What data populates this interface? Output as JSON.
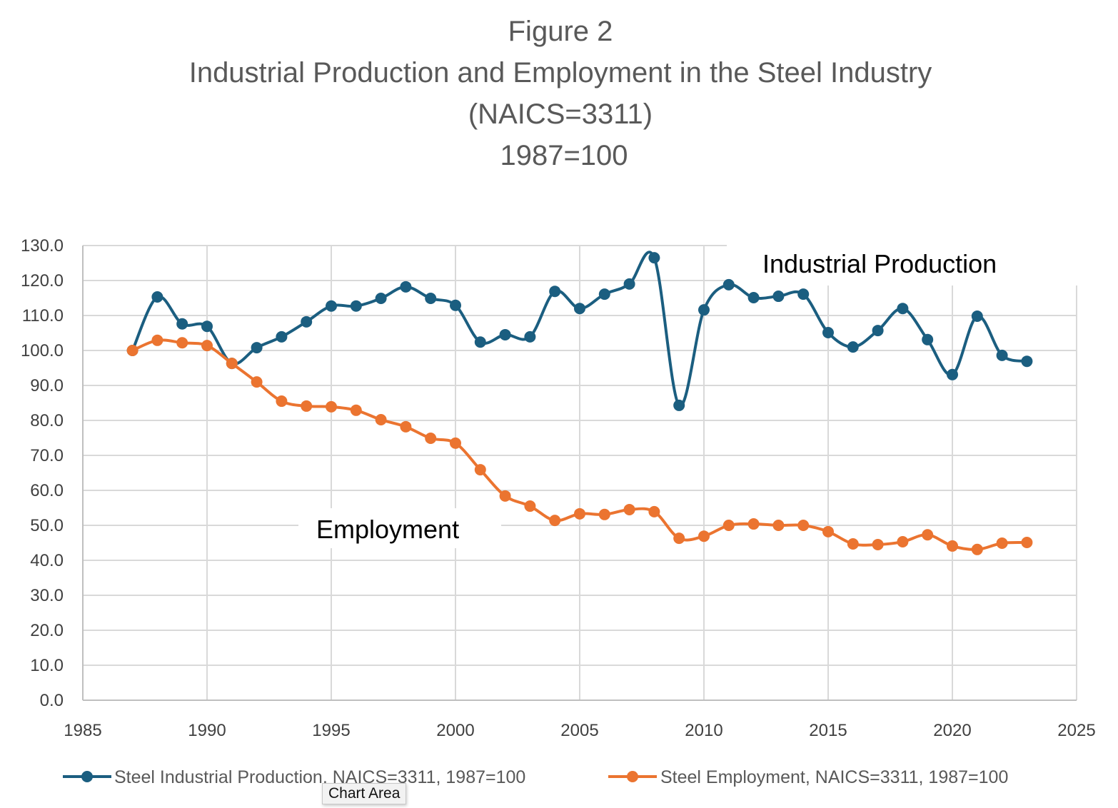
{
  "chart_data": {
    "type": "line",
    "title": [
      "Figure 2",
      "Industrial Production and Employment in the Steel Industry",
      "(NAICS=3311)",
      "1987=100"
    ],
    "xlabel": "",
    "ylabel": "",
    "xlim": [
      1985,
      2025
    ],
    "ylim": [
      0,
      130
    ],
    "xticks": [
      1985,
      1990,
      1995,
      2000,
      2005,
      2010,
      2015,
      2020,
      2025
    ],
    "yticks": [
      "0.0",
      "10.0",
      "20.0",
      "30.0",
      "40.0",
      "50.0",
      "60.0",
      "70.0",
      "80.0",
      "90.0",
      "100.0",
      "110.0",
      "120.0",
      "130.0"
    ],
    "grid": true,
    "legend_position": "bottom",
    "x": [
      1987,
      1988,
      1989,
      1990,
      1991,
      1992,
      1993,
      1994,
      1995,
      1996,
      1997,
      1998,
      1999,
      2000,
      2001,
      2002,
      2003,
      2004,
      2005,
      2006,
      2007,
      2008,
      2009,
      2010,
      2011,
      2012,
      2013,
      2014,
      2015,
      2016,
      2017,
      2018,
      2019,
      2020,
      2021,
      2022,
      2023
    ],
    "series": [
      {
        "name": "Steel Industrial Production, NAICS=3311, 1987=100",
        "annotation": "Industrial Production",
        "color": "#1b5e80",
        "values": [
          100,
          115.3,
          107.6,
          106.9,
          96.3,
          100.8,
          103.9,
          108.2,
          112.7,
          112.7,
          114.9,
          118.2,
          114.9,
          112.9,
          102.4,
          104.5,
          103.9,
          116.9,
          112.0,
          116.1,
          119.0,
          126.5,
          84.3,
          111.6,
          118.8,
          115.1,
          115.5,
          116.1,
          105.1,
          101.0,
          105.7,
          112.0,
          103.1,
          93.1,
          109.8,
          98.6,
          96.9
        ]
      },
      {
        "name": "Steel Employment, NAICS=3311, 1987=100",
        "annotation": "Employment",
        "color": "#eb7430",
        "values": [
          100,
          102.9,
          102.2,
          101.4,
          96.3,
          91.0,
          85.5,
          84.1,
          83.9,
          82.9,
          80.2,
          78.2,
          74.9,
          73.5,
          65.9,
          58.4,
          55.5,
          51.4,
          53.3,
          53.1,
          54.5,
          53.9,
          46.3,
          46.9,
          50.0,
          50.4,
          50.0,
          50.0,
          48.2,
          44.7,
          44.5,
          45.3,
          47.3,
          44.1,
          43.1,
          44.9,
          45.1
        ]
      }
    ]
  },
  "tooltip": "Chart Area"
}
